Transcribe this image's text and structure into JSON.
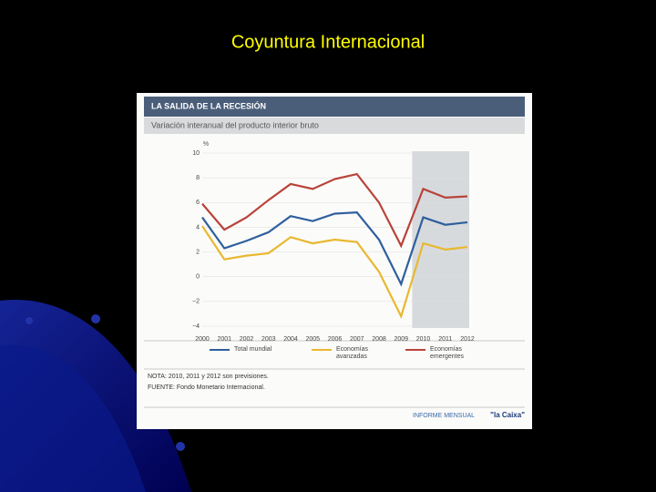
{
  "slide_title": "Coyuntura Internacional",
  "chart_data": {
    "type": "line",
    "title": "LA SALIDA DE LA RECESIÓN",
    "subtitle": "Variación interanual del producto interior bruto",
    "y_unit": "%",
    "categories": [
      "2000",
      "2001",
      "2002",
      "2003",
      "2004",
      "2005",
      "2006",
      "2007",
      "2008",
      "2009",
      "2010",
      "2011",
      "2012"
    ],
    "shaded_range": [
      "2010",
      "2012"
    ],
    "series": [
      {
        "name": "Total mundial",
        "color": "#2f5f9e",
        "values": [
          4.8,
          2.3,
          2.9,
          3.6,
          4.9,
          4.5,
          5.1,
          5.2,
          3.0,
          -0.6,
          4.8,
          4.2,
          4.4
        ]
      },
      {
        "name": "Economías avanzadas",
        "color": "#e8b830",
        "values": [
          4.1,
          1.4,
          1.7,
          1.9,
          3.2,
          2.7,
          3.0,
          2.8,
          0.4,
          -3.2,
          2.7,
          2.2,
          2.4
        ]
      },
      {
        "name": "Economías emergentes",
        "color": "#b8433a",
        "values": [
          5.9,
          3.8,
          4.8,
          6.2,
          7.5,
          7.1,
          7.9,
          8.3,
          6.0,
          2.5,
          7.1,
          6.4,
          6.5
        ]
      }
    ],
    "ylim": [
      -4,
      10
    ],
    "yticks": [
      {
        "value": -4,
        "label": "−4"
      },
      {
        "value": -2,
        "label": "−2"
      },
      0,
      2,
      4,
      6,
      8,
      10
    ],
    "grid": true,
    "notes": [
      "NOTA: 2010, 2011 y 2012 son previsiones.",
      "FUENTE: Fondo Monetario Internacional."
    ],
    "footer": {
      "publication": "INFORME MENSUAL",
      "brand": "\"la Caixa\""
    }
  }
}
